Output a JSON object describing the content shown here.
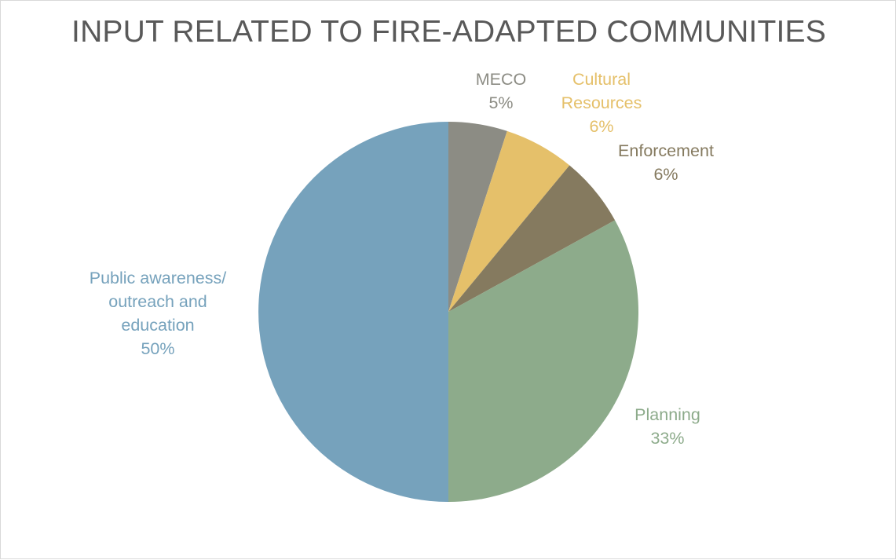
{
  "chart_data": {
    "type": "pie",
    "title": "INPUT RELATED TO FIRE-ADAPTED COMMUNITIES",
    "slices": [
      {
        "label": "MECO",
        "value": 5,
        "value_label": "5%",
        "color": "#8c8c84"
      },
      {
        "label": "Cultural Resources",
        "label_lines": [
          "Cultural",
          "Resources"
        ],
        "value": 6,
        "value_label": "6%",
        "color": "#e5c06a"
      },
      {
        "label": "Enforcement",
        "value": 6,
        "value_label": "6%",
        "color": "#857a5f"
      },
      {
        "label": "Planning",
        "value": 33,
        "value_label": "33%",
        "color": "#8dab8b"
      },
      {
        "label": "Public awareness/ outreach and education",
        "label_lines": [
          "Public awareness/",
          "outreach and",
          "education"
        ],
        "value": 50,
        "value_label": "50%",
        "color": "#76a2bc"
      }
    ],
    "start_angle": "12 o'clock",
    "direction": "clockwise",
    "legend": "none",
    "data_labels": "outside"
  }
}
